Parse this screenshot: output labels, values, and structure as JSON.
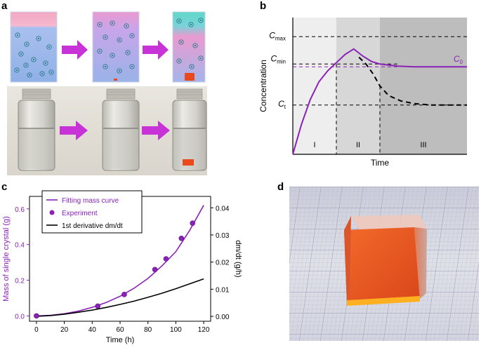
{
  "figure": {
    "labels": {
      "a": "a",
      "b": "b",
      "c": "c",
      "d": "d"
    }
  },
  "panel_a": {
    "description_icons": [
      "beaker-undersaturated",
      "arrow-icon",
      "beaker-nucleating",
      "arrow-icon",
      "beaker-crystal"
    ],
    "colors": {
      "arrow": "#c733d6",
      "pink": "#f4a9c7",
      "blue": "#9ab4e6",
      "teal": "#4fd1c5",
      "crystal": "#e8491d"
    }
  },
  "panel_b": {
    "chart_data": {
      "type": "line",
      "xlabel": "Time",
      "ylabel": "Concentration",
      "level_labels": {
        "cmax": "C",
        "cmax_sub": "max",
        "cmin": "C",
        "cmin_sub": "min",
        "ct": "C",
        "ct_sub": "t",
        "c0": "C",
        "c0_sub": "0"
      },
      "regions": [
        "I",
        "II",
        "III"
      ],
      "levels": {
        "cmax": 0.86,
        "cmin": 0.66,
        "c0": 0.64,
        "ct": 0.36
      },
      "region_bounds": [
        0,
        0.25,
        0.5,
        1.0
      ],
      "series": [
        {
          "name": "concentration (purple)",
          "color": "#8a22b8",
          "x": [
            0,
            0.05,
            0.1,
            0.15,
            0.2,
            0.25,
            0.3,
            0.35,
            0.4,
            0.45,
            0.5,
            0.6,
            0.7,
            1.0
          ],
          "y": [
            0,
            0.22,
            0.4,
            0.53,
            0.61,
            0.67,
            0.73,
            0.77,
            0.72,
            0.68,
            0.66,
            0.645,
            0.64,
            0.64
          ]
        },
        {
          "name": "crystal growth (dashed)",
          "color": "#000000",
          "x": [
            0.38,
            0.42,
            0.46,
            0.5,
            0.55,
            0.62,
            0.7,
            0.8,
            0.9,
            1.0
          ],
          "y": [
            0.71,
            0.66,
            0.59,
            0.5,
            0.43,
            0.39,
            0.37,
            0.36,
            0.36,
            0.36
          ]
        }
      ]
    }
  },
  "panel_c": {
    "chart_data": {
      "type": "line",
      "xlabel": "Time (h)",
      "ylabel": "Mass of single crystal (g)",
      "y2label": "dm/dt (g/h)",
      "xlim": [
        -5,
        125
      ],
      "ylim": [
        -0.03,
        0.67
      ],
      "y2lim": [
        -0.0018,
        0.0442
      ],
      "xticks": [
        "0",
        "20",
        "40",
        "60",
        "80",
        "100",
        "120"
      ],
      "yticks": [
        "0.0",
        "0.2",
        "0.4",
        "0.6"
      ],
      "y2ticks": [
        "0.00",
        "0.01",
        "0.02",
        "0.03",
        "0.04"
      ],
      "legend": [
        "Fitting mass curve",
        "Experiment",
        "1st derivative dm/dt"
      ],
      "series": [
        {
          "name": "Fitting mass curve",
          "color": "#8a22b8",
          "x": [
            0,
            10,
            20,
            30,
            40,
            50,
            60,
            70,
            80,
            90,
            100,
            110,
            120
          ],
          "y": [
            0.0,
            0.003,
            0.012,
            0.027,
            0.048,
            0.075,
            0.11,
            0.155,
            0.21,
            0.28,
            0.36,
            0.48,
            0.62
          ]
        },
        {
          "name": "Experiment",
          "color": "#8a22b8",
          "x": [
            0,
            44,
            63,
            85,
            93,
            104,
            112
          ],
          "y": [
            0.0,
            0.055,
            0.12,
            0.26,
            0.32,
            0.435,
            0.52
          ]
        },
        {
          "name": "1st derivative dm/dt",
          "color": "#000000",
          "axis": "right",
          "x": [
            0,
            10,
            20,
            30,
            40,
            50,
            60,
            70,
            80,
            90,
            100,
            110,
            120
          ],
          "y": [
            0.0,
            0.0003,
            0.0008,
            0.0015,
            0.0023,
            0.0033,
            0.0044,
            0.0056,
            0.007,
            0.0085,
            0.0102,
            0.012,
            0.0138
          ]
        }
      ]
    }
  },
  "panel_d": {
    "colors": {
      "grid_bg": "#d6dbe8",
      "grid_line": "#b7b3c9",
      "crystal_front": "#e8531a",
      "crystal_top": "#f4d1c5"
    }
  }
}
